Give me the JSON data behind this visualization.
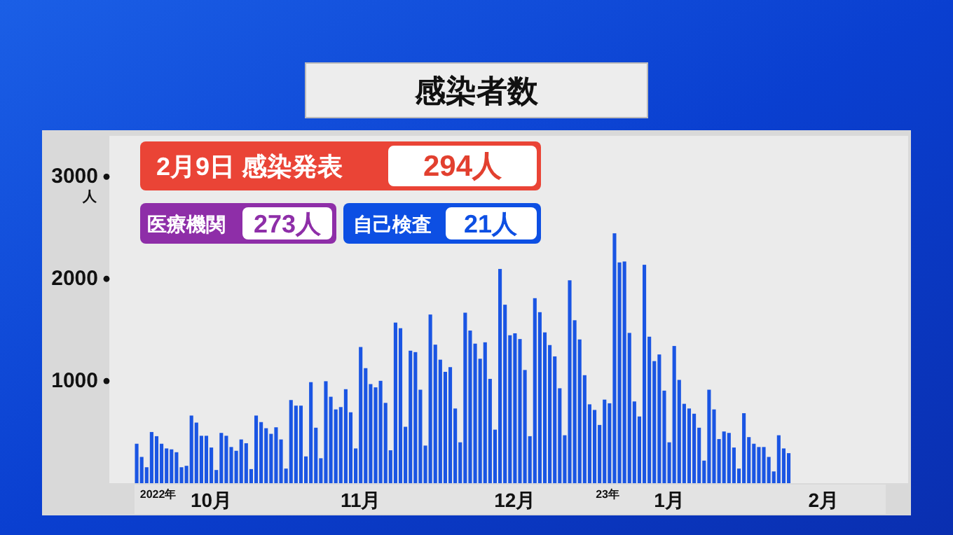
{
  "chart_data": {
    "type": "bar",
    "title": "感染者数",
    "ylabel": "人",
    "x": [
      "2022-10-01",
      "2022-10-02",
      "2022-10-03",
      "2022-10-04",
      "2022-10-05",
      "2022-10-06",
      "2022-10-07",
      "2022-10-08",
      "2022-10-09",
      "2022-10-10",
      "2022-10-11",
      "2022-10-12",
      "2022-10-13",
      "2022-10-14",
      "2022-10-15",
      "2022-10-16",
      "2022-10-17",
      "2022-10-18",
      "2022-10-19",
      "2022-10-20",
      "2022-10-21",
      "2022-10-22",
      "2022-10-23",
      "2022-10-24",
      "2022-10-25",
      "2022-10-26",
      "2022-10-27",
      "2022-10-28",
      "2022-10-29",
      "2022-10-30",
      "2022-10-31",
      "2022-11-01",
      "2022-11-02",
      "2022-11-03",
      "2022-11-04",
      "2022-11-05",
      "2022-11-06",
      "2022-11-07",
      "2022-11-08",
      "2022-11-09",
      "2022-11-10",
      "2022-11-11",
      "2022-11-12",
      "2022-11-13",
      "2022-11-14",
      "2022-11-15",
      "2022-11-16",
      "2022-11-17",
      "2022-11-18",
      "2022-11-19",
      "2022-11-20",
      "2022-11-21",
      "2022-11-22",
      "2022-11-23",
      "2022-11-24",
      "2022-11-25",
      "2022-11-26",
      "2022-11-27",
      "2022-11-28",
      "2022-11-29",
      "2022-11-30",
      "2022-12-01",
      "2022-12-02",
      "2022-12-03",
      "2022-12-04",
      "2022-12-05",
      "2022-12-06",
      "2022-12-07",
      "2022-12-08",
      "2022-12-09",
      "2022-12-10",
      "2022-12-11",
      "2022-12-12",
      "2022-12-13",
      "2022-12-14",
      "2022-12-15",
      "2022-12-16",
      "2022-12-17",
      "2022-12-18",
      "2022-12-19",
      "2022-12-20",
      "2022-12-21",
      "2022-12-22",
      "2022-12-23",
      "2022-12-24",
      "2022-12-25",
      "2022-12-26",
      "2022-12-27",
      "2022-12-28",
      "2022-12-29",
      "2022-12-30",
      "2022-12-31",
      "2023-01-01",
      "2023-01-02",
      "2023-01-03",
      "2023-01-04",
      "2023-01-05",
      "2023-01-06",
      "2023-01-07",
      "2023-01-08",
      "2023-01-09",
      "2023-01-10",
      "2023-01-11",
      "2023-01-12",
      "2023-01-13",
      "2023-01-14",
      "2023-01-15",
      "2023-01-16",
      "2023-01-17",
      "2023-01-18",
      "2023-01-19",
      "2023-01-20",
      "2023-01-21",
      "2023-01-22",
      "2023-01-23",
      "2023-01-24",
      "2023-01-25",
      "2023-01-26",
      "2023-01-27",
      "2023-01-28",
      "2023-01-29",
      "2023-01-30",
      "2023-01-31",
      "2023-02-01",
      "2023-02-02",
      "2023-02-03",
      "2023-02-04",
      "2023-02-05",
      "2023-02-06",
      "2023-02-07",
      "2023-02-08",
      "2023-02-09"
    ],
    "values": [
      386,
      257,
      156,
      501,
      460,
      386,
      340,
      331,
      303,
      156,
      170,
      662,
      593,
      464,
      464,
      349,
      129,
      492,
      464,
      354,
      317,
      428,
      391,
      138,
      662,
      598,
      538,
      483,
      547,
      428,
      143,
      814,
      759,
      759,
      262,
      989,
      543,
      244,
      998,
      846,
      722,
      745,
      920,
      694,
      340,
      1333,
      1126,
      970,
      938,
      1002,
      786,
      322,
      1572,
      1517,
      552,
      1297,
      1283,
      915,
      368,
      1651,
      1356,
      1209,
      1090,
      1136,
      731,
      400,
      1669,
      1494,
      1366,
      1218,
      1379,
      1021,
      524,
      2097,
      1747,
      1448,
      1467,
      1411,
      1108,
      460,
      1811,
      1674,
      1476,
      1352,
      1241,
      929,
      469,
      1986,
      1595,
      1407,
      1057,
      772,
      717,
      570,
      818,
      782,
      2446,
      2161,
      2170,
      1471,
      800,
      653,
      2138,
      1434,
      1195,
      1260,
      906,
      400,
      1343,
      1011,
      777,
      731,
      680,
      543,
      221,
      915,
      722,
      432,
      506,
      492,
      349,
      143,
      685,
      451,
      386,
      354,
      354,
      257,
      115,
      469,
      340,
      294
    ],
    "color": "#1a55e3",
    "xlim": [
      "2022-09-25T12:00",
      "2023-03-05"
    ],
    "xticks": [
      {
        "value": "2022-10-16",
        "label": "10月"
      },
      {
        "value": "2022-11-15",
        "label": "11月"
      },
      {
        "value": "2022-12-16",
        "label": "12月"
      },
      {
        "value": "2023-01-16",
        "label": "1月"
      },
      {
        "value": "2023-02-16",
        "label": "2月"
      }
    ],
    "ylim": [
      0,
      3400
    ],
    "yticks": [
      1000,
      2000,
      3000
    ],
    "annotations": [
      "2月9日 感染発表",
      "294人",
      "医療機関",
      "273人",
      "自己検査",
      "21人",
      "2022年",
      "23年"
    ]
  }
}
